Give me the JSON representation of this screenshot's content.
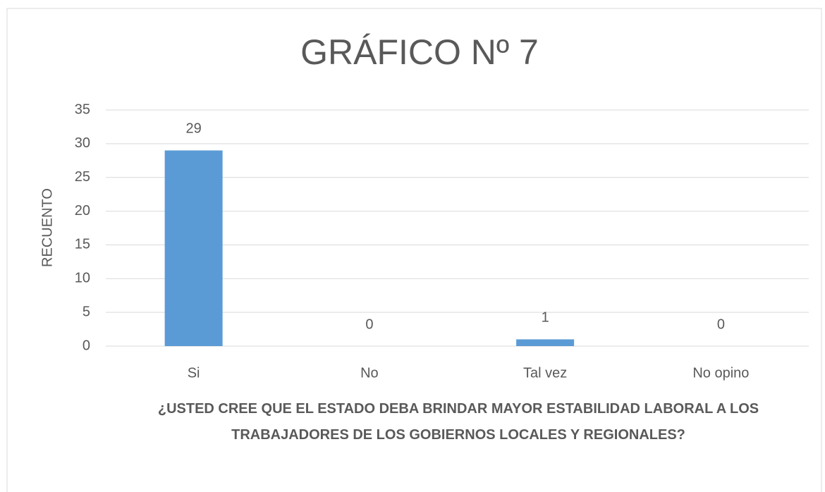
{
  "chart_data": {
    "type": "bar",
    "title": "GRÁFICO Nº 7",
    "xlabel": "¿USTED CREE QUE EL ESTADO DEBA BRINDAR MAYOR ESTABILIDAD LABORAL A LOS TRABAJADORES DE LOS GOBIERNOS LOCALES Y REGIONALES?",
    "ylabel": "RECUENTO",
    "categories": [
      "Si",
      "No",
      "Tal vez",
      "No opino"
    ],
    "values": [
      29,
      0,
      1,
      0
    ],
    "color": "#5b9bd5",
    "ylim": [
      0,
      35
    ],
    "yticks": [
      0,
      5,
      10,
      15,
      20,
      25,
      30,
      35
    ],
    "grid": true
  }
}
